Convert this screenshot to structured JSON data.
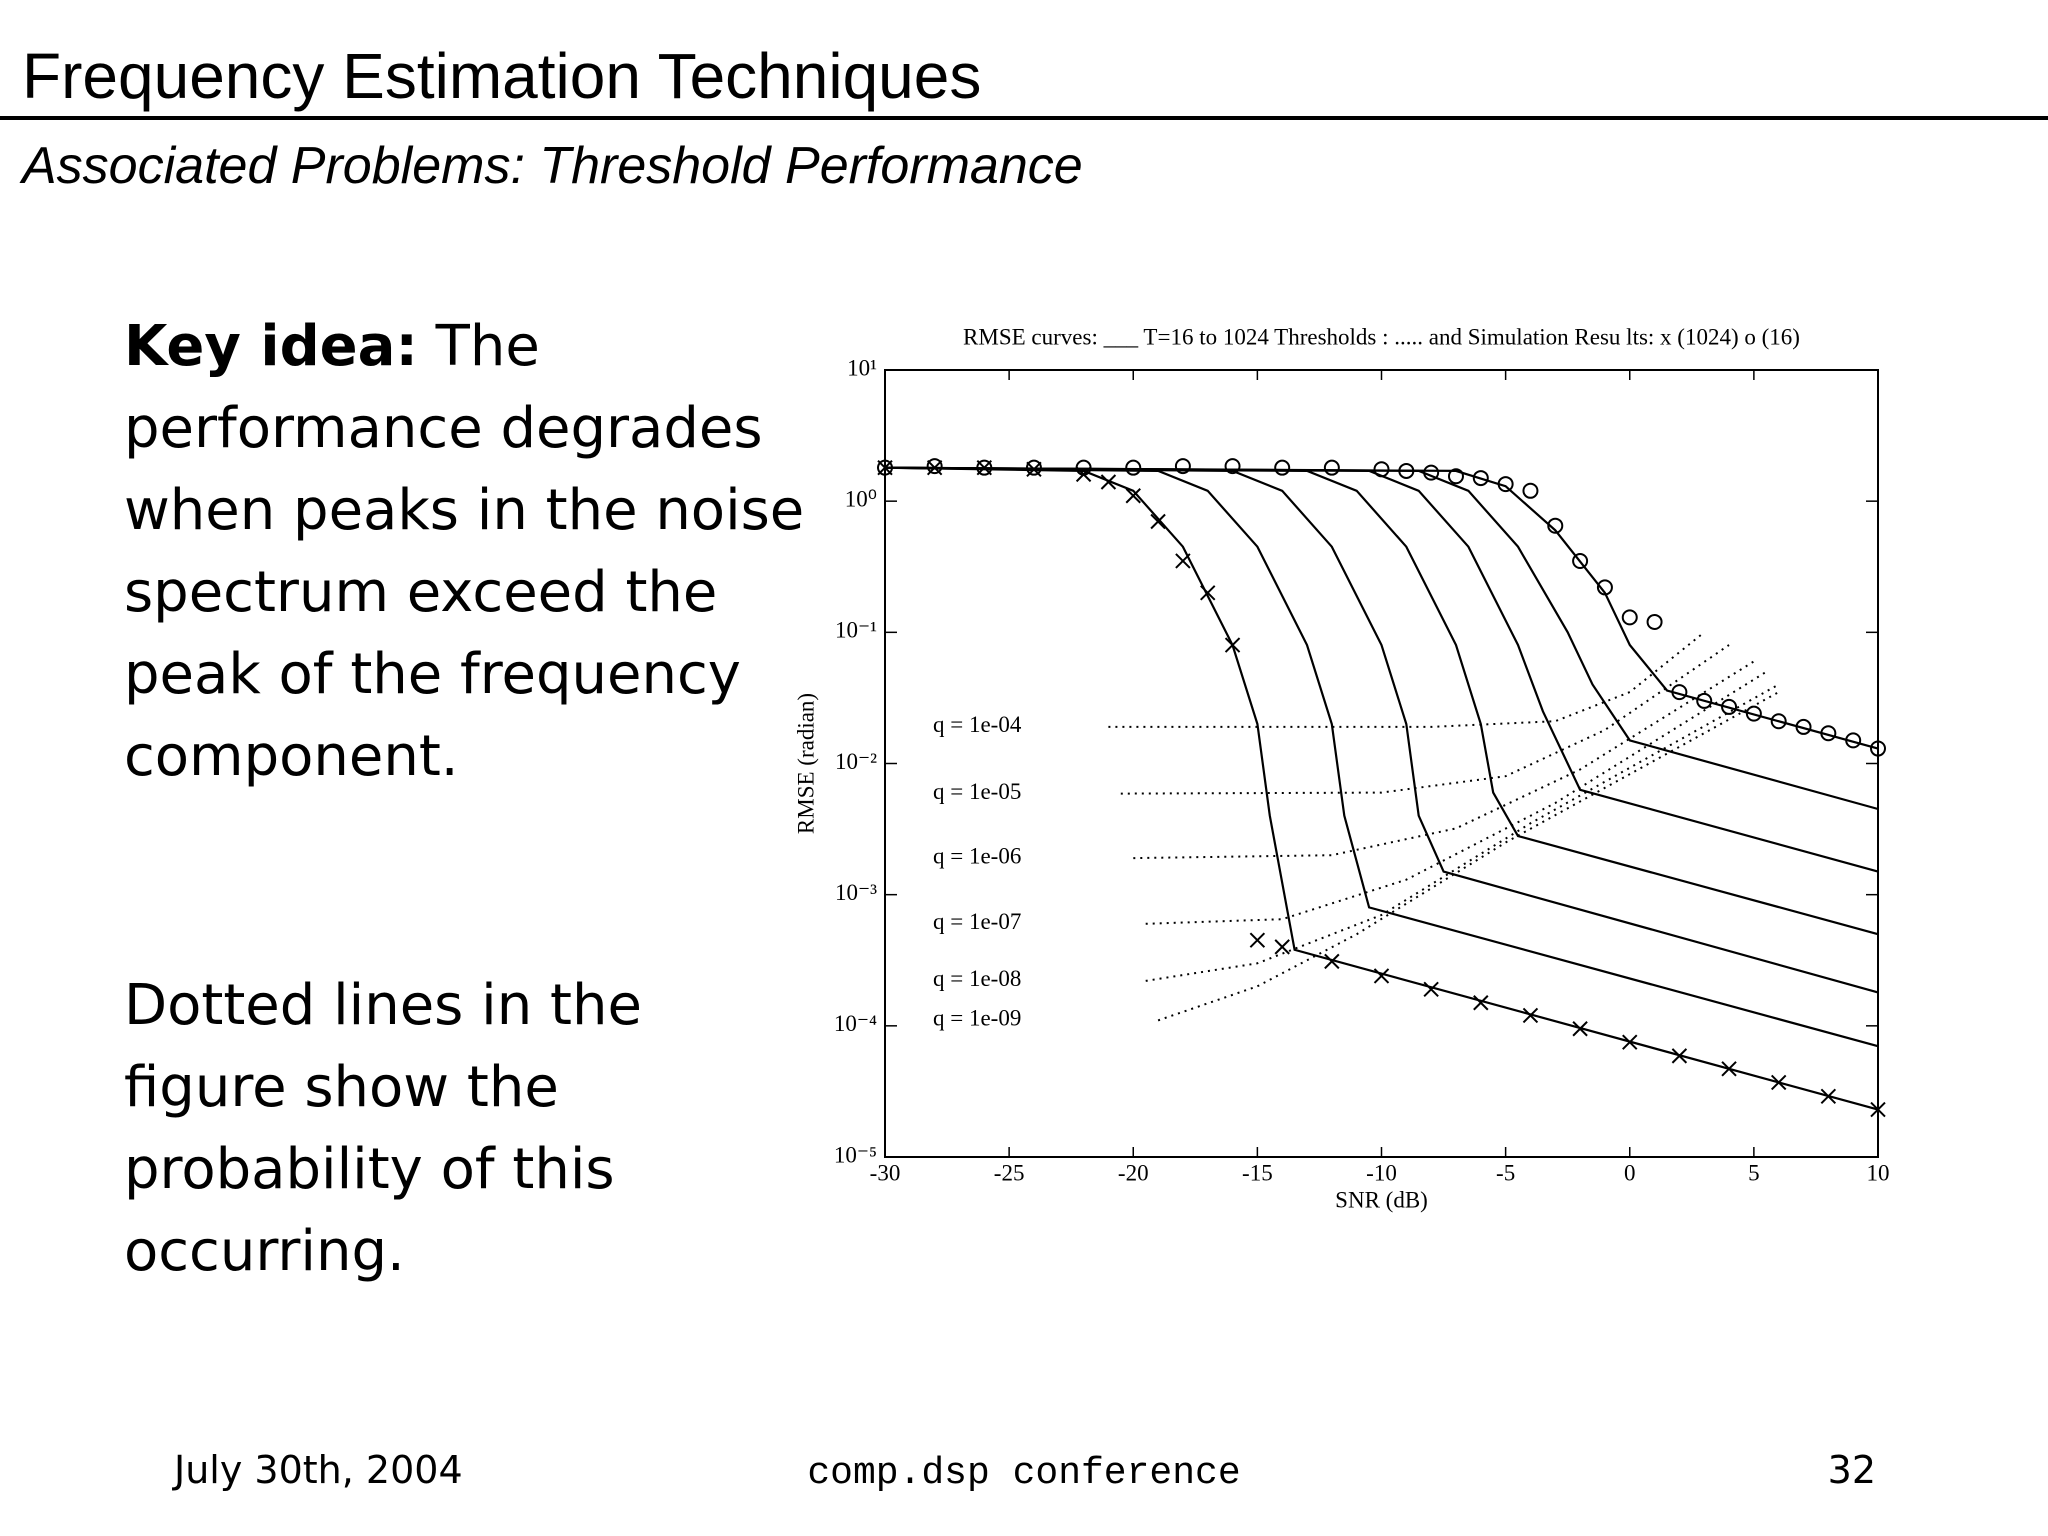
{
  "header": {
    "title": "Frequency Estimation Techniques",
    "subtitle": "Associated Problems: Threshold Performance"
  },
  "body": {
    "key_label": "Key idea:",
    "paragraphs": [
      "The performance degrades when peaks in the noise spectrum exceed the peak of the frequency component.",
      "Dotted lines in the figure show the probability of this occurring."
    ]
  },
  "footer": {
    "date": "July 30th, 2004",
    "event": "comp.dsp conference",
    "page": "32"
  },
  "chart_data": {
    "type": "line",
    "title": "RMSE curves: ___ T=16 to 1024  Thresholds : ..... and Simulation Resu lts: x (1024) o (16)",
    "x_label": "SNR (dB)",
    "y_label": "RMSE (radian)",
    "xlim": [
      -30,
      10
    ],
    "xticks": [
      -30,
      -25,
      -20,
      -15,
      -10,
      -5,
      0,
      5,
      10
    ],
    "ylim": [
      1e-05,
      10
    ],
    "y_scale": "log",
    "yticks": [
      {
        "value": 1e-05,
        "label": "10⁻⁵"
      },
      {
        "value": 0.0001,
        "label": "10⁻⁴"
      },
      {
        "value": 0.001,
        "label": "10⁻³"
      },
      {
        "value": 0.01,
        "label": "10⁻²"
      },
      {
        "value": 0.1,
        "label": "10⁻¹"
      },
      {
        "value": 1,
        "label": "10⁰"
      },
      {
        "value": 10,
        "label": "10¹"
      }
    ],
    "series": [
      {
        "kind": "line",
        "style": "solid",
        "color": "#000000",
        "x": [
          -30,
          -22,
          -20,
          -18,
          -16,
          -15,
          -14.5,
          -13.5,
          10
        ],
        "values": [
          1.8,
          1.7,
          1.2,
          0.45,
          0.08,
          0.02,
          0.004,
          0.00038,
          2.3e-05
        ]
      },
      {
        "kind": "line",
        "style": "solid",
        "color": "#000000",
        "x": [
          -30,
          -19,
          -17,
          -15,
          -13,
          -12,
          -11.5,
          -10.5,
          10
        ],
        "values": [
          1.8,
          1.7,
          1.2,
          0.45,
          0.08,
          0.02,
          0.004,
          0.0008,
          7e-05
        ]
      },
      {
        "kind": "line",
        "style": "solid",
        "color": "#000000",
        "x": [
          -30,
          -16,
          -14,
          -12,
          -10,
          -9,
          -8.5,
          -7.5,
          10
        ],
        "values": [
          1.8,
          1.7,
          1.2,
          0.45,
          0.08,
          0.02,
          0.004,
          0.0015,
          0.00018
        ]
      },
      {
        "kind": "line",
        "style": "solid",
        "color": "#000000",
        "x": [
          -30,
          -13,
          -11,
          -9,
          -7,
          -6,
          -5.5,
          -4.5,
          10
        ],
        "values": [
          1.8,
          1.7,
          1.2,
          0.45,
          0.08,
          0.02,
          0.006,
          0.0028,
          0.0005
        ]
      },
      {
        "kind": "line",
        "style": "solid",
        "color": "#000000",
        "x": [
          -30,
          -10.5,
          -8.5,
          -6.5,
          -4.5,
          -3.5,
          -2,
          10
        ],
        "values": [
          1.8,
          1.7,
          1.2,
          0.45,
          0.08,
          0.025,
          0.0063,
          0.0015
        ]
      },
      {
        "kind": "line",
        "style": "solid",
        "color": "#000000",
        "x": [
          -30,
          -8.5,
          -6.5,
          -4.5,
          -2.5,
          -1.5,
          0,
          10
        ],
        "values": [
          1.8,
          1.7,
          1.2,
          0.45,
          0.1,
          0.04,
          0.015,
          0.0045
        ]
      },
      {
        "kind": "line",
        "style": "solid",
        "color": "#000000",
        "x": [
          -30,
          -7,
          -5,
          -3,
          -1,
          0,
          1.5,
          10
        ],
        "values": [
          1.8,
          1.7,
          1.3,
          0.6,
          0.2,
          0.08,
          0.036,
          0.013
        ]
      },
      {
        "kind": "line",
        "style": "dotted",
        "color": "#000000",
        "name": "q = 1e-04",
        "x": [
          -21,
          -8,
          -3,
          0,
          3
        ],
        "values": [
          0.019,
          0.019,
          0.021,
          0.035,
          0.1
        ]
      },
      {
        "kind": "line",
        "style": "dotted",
        "color": "#000000",
        "name": "q = 1e-05",
        "x": [
          -20.5,
          -10,
          -5,
          -1,
          4
        ],
        "values": [
          0.0059,
          0.006,
          0.008,
          0.018,
          0.08
        ]
      },
      {
        "kind": "line",
        "style": "dotted",
        "color": "#000000",
        "name": "q = 1e-06",
        "x": [
          -20,
          -12,
          -7,
          -2,
          5
        ],
        "values": [
          0.0019,
          0.002,
          0.0032,
          0.009,
          0.06
        ]
      },
      {
        "kind": "line",
        "style": "dotted",
        "color": "#000000",
        "name": "q = 1e-07",
        "x": [
          -19.5,
          -14,
          -9,
          -3,
          5.5
        ],
        "values": [
          0.0006,
          0.00065,
          0.0013,
          0.005,
          0.05
        ]
      },
      {
        "kind": "line",
        "style": "dotted",
        "color": "#000000",
        "name": "q = 1e-08",
        "x": [
          -19.5,
          -15,
          -10,
          -4,
          6
        ],
        "values": [
          0.00022,
          0.0003,
          0.0007,
          0.0035,
          0.04
        ]
      },
      {
        "kind": "line",
        "style": "dotted",
        "color": "#000000",
        "name": "q = 1e-09",
        "x": [
          -19,
          -15,
          -11,
          -5,
          6
        ],
        "values": [
          0.00011,
          0.0002,
          0.0005,
          0.0025,
          0.035
        ]
      },
      {
        "kind": "scatter",
        "marker": "x",
        "color": "#000000",
        "x": [
          -30,
          -28,
          -26,
          -24,
          -22,
          -21,
          -20,
          -19,
          -18,
          -17,
          -16,
          -15,
          -14,
          -12,
          -10,
          -8,
          -6,
          -4,
          -2,
          0,
          2,
          4,
          6,
          8,
          10
        ],
        "values": [
          1.8,
          1.8,
          1.8,
          1.75,
          1.6,
          1.4,
          1.1,
          0.7,
          0.35,
          0.2,
          0.08,
          0.00045,
          0.0004,
          0.00031,
          0.00024,
          0.00019,
          0.00015,
          0.00012,
          9.5e-05,
          7.5e-05,
          5.9e-05,
          4.7e-05,
          3.7e-05,
          2.9e-05,
          2.3e-05
        ]
      },
      {
        "kind": "scatter",
        "marker": "o",
        "color": "#000000",
        "x": [
          -30,
          -28,
          -26,
          -24,
          -22,
          -20,
          -18,
          -16,
          -14,
          -12,
          -10,
          -9,
          -8,
          -7,
          -6,
          -5,
          -4,
          -3,
          -2,
          -1,
          0,
          1,
          2,
          3,
          4,
          5,
          6,
          7,
          8,
          9,
          10
        ],
        "values": [
          1.8,
          1.85,
          1.8,
          1.8,
          1.8,
          1.8,
          1.85,
          1.85,
          1.8,
          1.8,
          1.75,
          1.7,
          1.65,
          1.55,
          1.5,
          1.35,
          1.2,
          0.65,
          0.35,
          0.22,
          0.13,
          0.12,
          0.035,
          0.03,
          0.027,
          0.024,
          0.021,
          0.019,
          0.017,
          0.015,
          0.013
        ]
      }
    ]
  }
}
